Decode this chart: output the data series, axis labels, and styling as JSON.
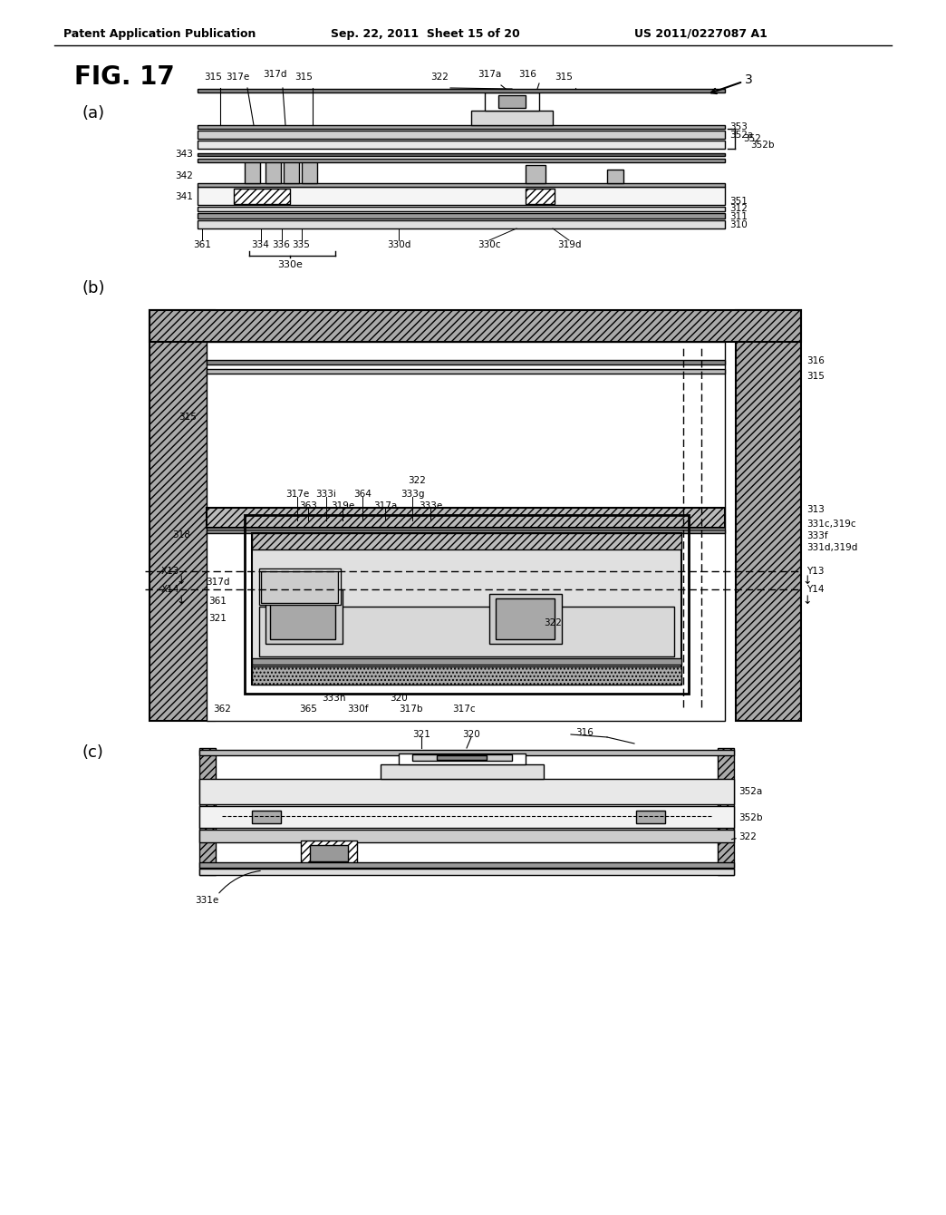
{
  "bg_color": "#ffffff",
  "text_color": "#000000",
  "header_left": "Patent Application Publication",
  "header_center": "Sep. 22, 2011  Sheet 15 of 20",
  "header_right": "US 2011/0227087 A1",
  "fig_title": "FIG. 17",
  "sub_a": "(a)",
  "sub_b": "(b)",
  "sub_c": "(c)"
}
